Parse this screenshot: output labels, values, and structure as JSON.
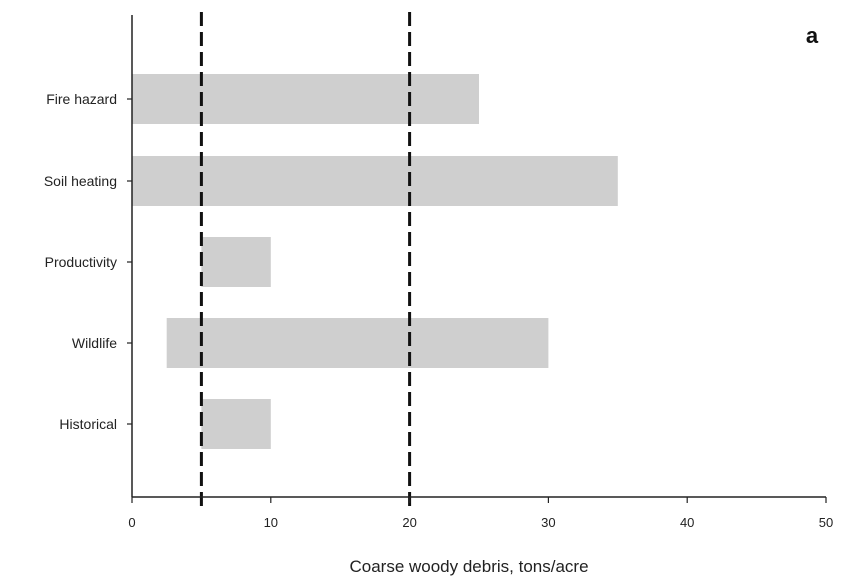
{
  "chart_data": {
    "type": "bar",
    "orientation": "horizontal",
    "panel_label": "a",
    "xlabel": "Coarse woody debris, tons/acre",
    "xlim": [
      0,
      50
    ],
    "xticks": [
      "0",
      "10",
      "20",
      "30",
      "40",
      "50"
    ],
    "categories": [
      "Fire hazard",
      "Soil heating",
      "Productivity",
      "Wildlife",
      "Historical"
    ],
    "ranges": [
      [
        0,
        25
      ],
      [
        0,
        35
      ],
      [
        5,
        10
      ],
      [
        2.5,
        30
      ],
      [
        5,
        10
      ]
    ],
    "reference_lines": [
      5,
      20
    ],
    "grid": false,
    "colors": {
      "bar": "#cfcfcf",
      "axis": "#222222",
      "reference_line": "#111111"
    }
  }
}
